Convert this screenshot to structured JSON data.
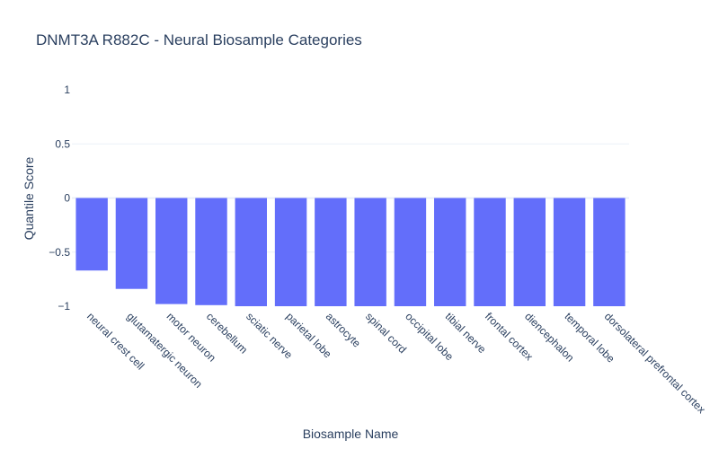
{
  "chart_data": {
    "type": "bar",
    "title": "DNMT3A R882C - Neural Biosample Categories",
    "xlabel": "Biosample Name",
    "ylabel": "Quantile Score",
    "categories": [
      "neural crest cell",
      "glutamatergic neuron",
      "motor neuron",
      "cerebellum",
      "sciatic nerve",
      "parietal lobe",
      "astrocyte",
      "spinal cord",
      "occipital lobe",
      "tibial nerve",
      "frontal cortex",
      "diencephalon",
      "temporal lobe",
      "dorsolateral prefrontal cortex"
    ],
    "values": [
      -0.67,
      -0.84,
      -0.98,
      -0.99,
      -1.0,
      -1.0,
      -1.0,
      -1.0,
      -1.0,
      -1.0,
      -1.0,
      -1.0,
      -1.0,
      -1.0
    ],
    "yticks": [
      1,
      0.5,
      0,
      -0.5,
      -1
    ],
    "ytick_labels": [
      "1",
      "0.5",
      "0",
      "−0.5",
      "−1"
    ],
    "ylim": [
      -1,
      1
    ],
    "bar_color": "#636efa",
    "grid": true,
    "legend": "none"
  }
}
